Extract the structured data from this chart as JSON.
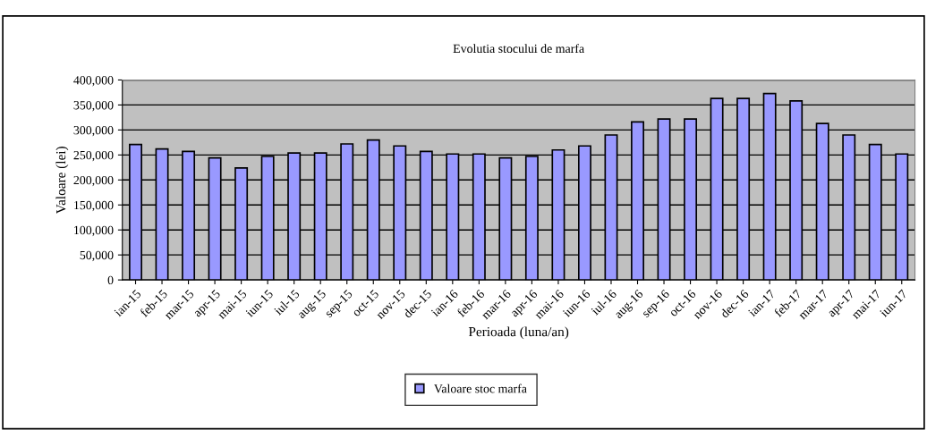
{
  "chart_data": {
    "type": "bar",
    "title": "Evolutia stocului de marfa",
    "xlabel": "Perioada (luna/an)",
    "ylabel": "Valoare (lei)",
    "categories": [
      "ian-15",
      "feb-15",
      "mar-15",
      "apr-15",
      "mai-15",
      "iun-15",
      "iul-15",
      "aug-15",
      "sep-15",
      "oct-15",
      "nov-15",
      "dec-15",
      "ian-16",
      "feb-16",
      "mar-16",
      "apr-16",
      "mai-16",
      "iun-16",
      "iul-16",
      "aug-16",
      "sep-16",
      "oct-16",
      "nov-16",
      "dec-16",
      "ian-17",
      "feb-17",
      "mar-17",
      "apr-17",
      "mai-17",
      "iun-17"
    ],
    "series": [
      {
        "name": "Valoare stoc marfa",
        "color": "#9999ff",
        "values": [
          271000,
          262000,
          257000,
          244000,
          224000,
          247000,
          254000,
          254000,
          272000,
          280000,
          268000,
          257000,
          252000,
          252000,
          244000,
          247000,
          260000,
          268000,
          290000,
          316000,
          322000,
          322000,
          363000,
          363000,
          373000,
          358000,
          313000,
          290000,
          271000,
          252000
        ]
      }
    ],
    "ylim": [
      0,
      400000
    ],
    "yticks": [
      {
        "value": 0,
        "label": "0"
      },
      {
        "value": 50000,
        "label": "50,000"
      },
      {
        "value": 100000,
        "label": "100,000"
      },
      {
        "value": 150000,
        "label": "150,000"
      },
      {
        "value": 200000,
        "label": "200,000"
      },
      {
        "value": 250000,
        "label": "250,000"
      },
      {
        "value": 300000,
        "label": "300,000"
      },
      {
        "value": 350000,
        "label": "350,000"
      },
      {
        "value": 400000,
        "label": "400,000"
      }
    ],
    "grid": "y",
    "legend": "bottom"
  }
}
